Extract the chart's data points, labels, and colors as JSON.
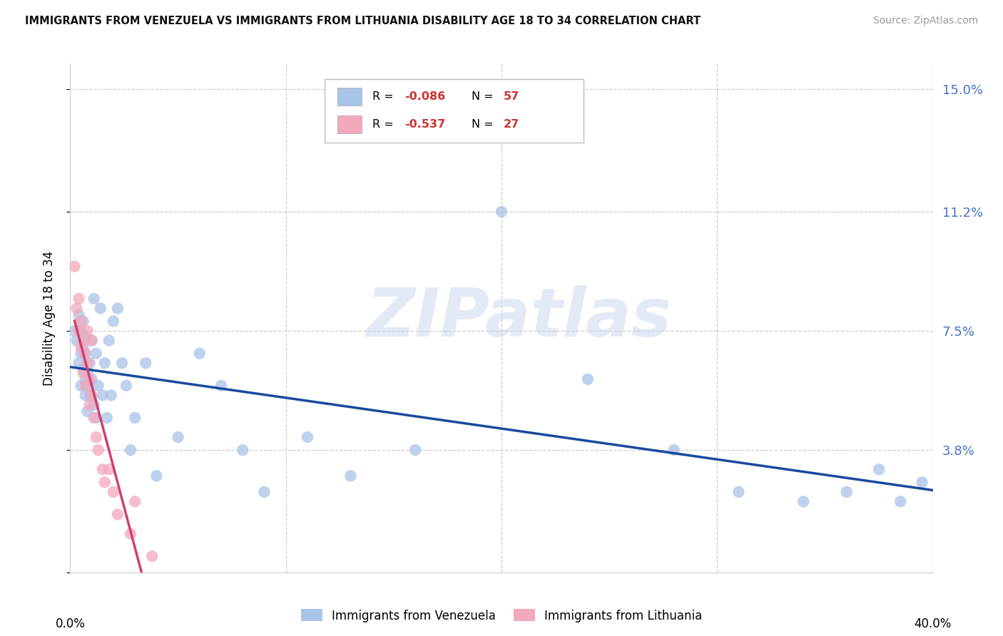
{
  "title": "IMMIGRANTS FROM VENEZUELA VS IMMIGRANTS FROM LITHUANIA DISABILITY AGE 18 TO 34 CORRELATION CHART",
  "source": "Source: ZipAtlas.com",
  "ylabel": "Disability Age 18 to 34",
  "yticks": [
    0.0,
    0.038,
    0.075,
    0.112,
    0.15
  ],
  "ytick_labels": [
    "",
    "3.8%",
    "7.5%",
    "11.2%",
    "15.0%"
  ],
  "xlim": [
    0.0,
    0.4
  ],
  "ylim": [
    0.0,
    0.158
  ],
  "legend_label1": "Immigrants from Venezuela",
  "legend_label2": "Immigrants from Lithuania",
  "watermark": "ZIPatlas",
  "venezuela_color": "#a8c4e8",
  "lithuania_color": "#f4a8bc",
  "trend_venezuela_color": "#1a4a9e",
  "trend_lithuania_color": "#d04070",
  "r_value_color": "#cc3333",
  "background_color": "#ffffff",
  "grid_color": "#cccccc",
  "right_tick_color": "#4472c4",
  "venezuela_x": [
    0.002,
    0.003,
    0.004,
    0.004,
    0.005,
    0.005,
    0.005,
    0.006,
    0.006,
    0.006,
    0.007,
    0.007,
    0.007,
    0.007,
    0.008,
    0.008,
    0.008,
    0.009,
    0.009,
    0.01,
    0.01,
    0.011,
    0.011,
    0.012,
    0.012,
    0.013,
    0.014,
    0.015,
    0.016,
    0.017,
    0.018,
    0.019,
    0.02,
    0.022,
    0.024,
    0.026,
    0.028,
    0.03,
    0.035,
    0.04,
    0.05,
    0.06,
    0.07,
    0.08,
    0.09,
    0.11,
    0.13,
    0.16,
    0.2,
    0.24,
    0.28,
    0.31,
    0.34,
    0.36,
    0.375,
    0.385,
    0.395
  ],
  "venezuela_y": [
    0.075,
    0.072,
    0.08,
    0.065,
    0.075,
    0.068,
    0.058,
    0.07,
    0.063,
    0.078,
    0.06,
    0.055,
    0.068,
    0.073,
    0.062,
    0.058,
    0.05,
    0.055,
    0.065,
    0.06,
    0.072,
    0.085,
    0.052,
    0.068,
    0.048,
    0.058,
    0.082,
    0.055,
    0.065,
    0.048,
    0.072,
    0.055,
    0.078,
    0.082,
    0.065,
    0.058,
    0.038,
    0.048,
    0.065,
    0.03,
    0.042,
    0.068,
    0.058,
    0.038,
    0.025,
    0.042,
    0.03,
    0.038,
    0.112,
    0.06,
    0.038,
    0.025,
    0.022,
    0.025,
    0.032,
    0.022,
    0.028
  ],
  "lithuania_x": [
    0.002,
    0.003,
    0.004,
    0.004,
    0.005,
    0.005,
    0.006,
    0.006,
    0.007,
    0.007,
    0.008,
    0.008,
    0.009,
    0.009,
    0.01,
    0.01,
    0.011,
    0.012,
    0.013,
    0.015,
    0.016,
    0.018,
    0.02,
    0.022,
    0.028,
    0.03,
    0.038
  ],
  "lithuania_y": [
    0.095,
    0.082,
    0.085,
    0.075,
    0.078,
    0.07,
    0.072,
    0.062,
    0.068,
    0.058,
    0.075,
    0.065,
    0.06,
    0.052,
    0.055,
    0.072,
    0.048,
    0.042,
    0.038,
    0.032,
    0.028,
    0.032,
    0.025,
    0.018,
    0.012,
    0.022,
    0.005
  ]
}
